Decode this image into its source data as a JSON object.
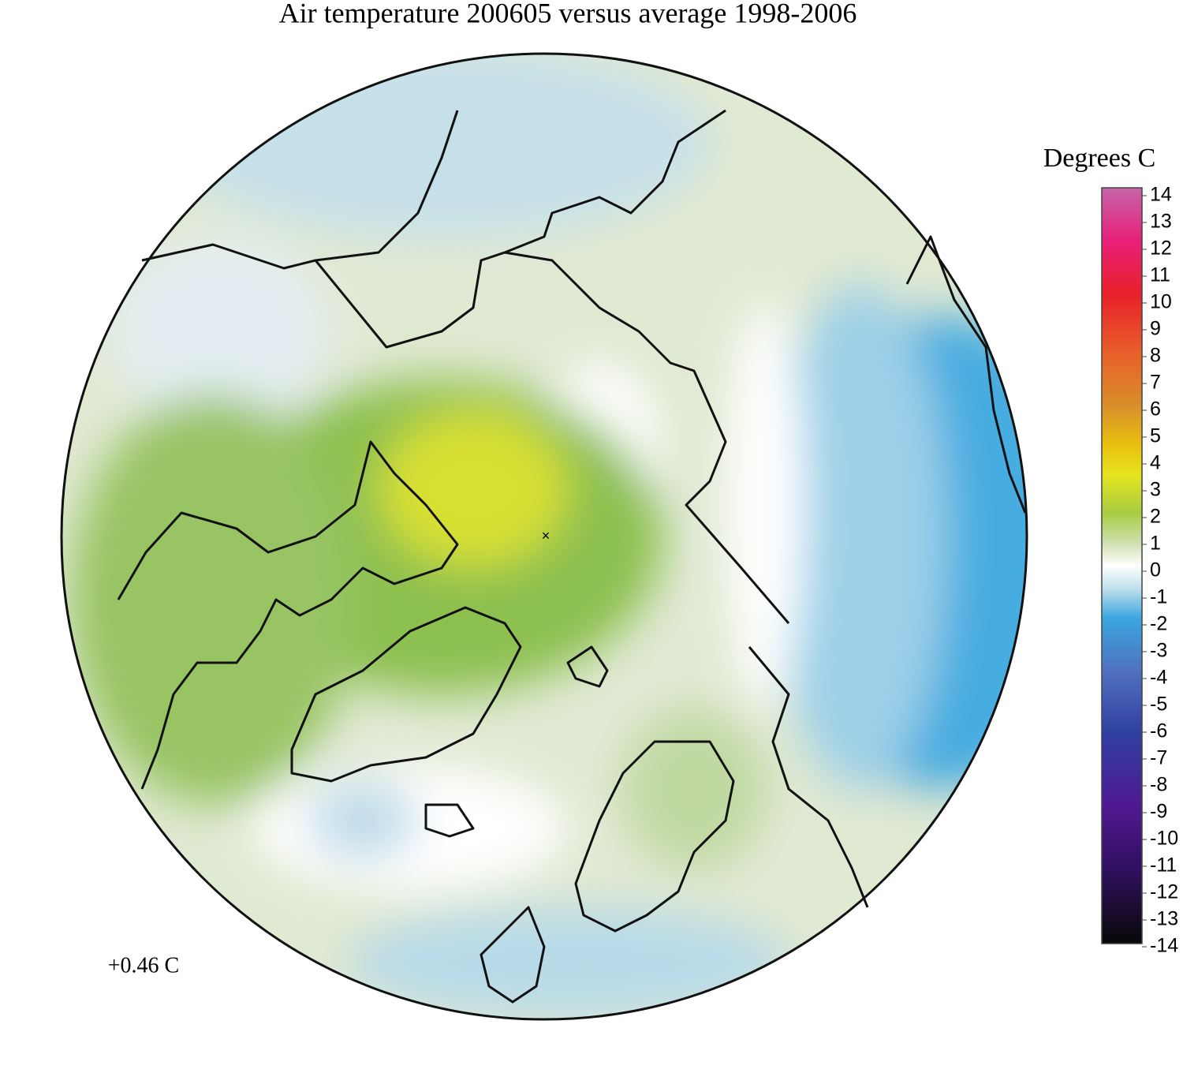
{
  "title": "Air temperature 200605 versus average 1998-2006",
  "annotation": "+0.46 C",
  "colorbar": {
    "label": "Degrees C",
    "range": [
      -14,
      14
    ],
    "ticks": [
      14,
      13,
      12,
      11,
      10,
      9,
      8,
      7,
      6,
      5,
      4,
      3,
      2,
      1,
      0,
      -1,
      -2,
      -3,
      -4,
      -5,
      -6,
      -7,
      -8,
      -9,
      -10,
      -11,
      -12,
      -13,
      -14
    ]
  }
}
